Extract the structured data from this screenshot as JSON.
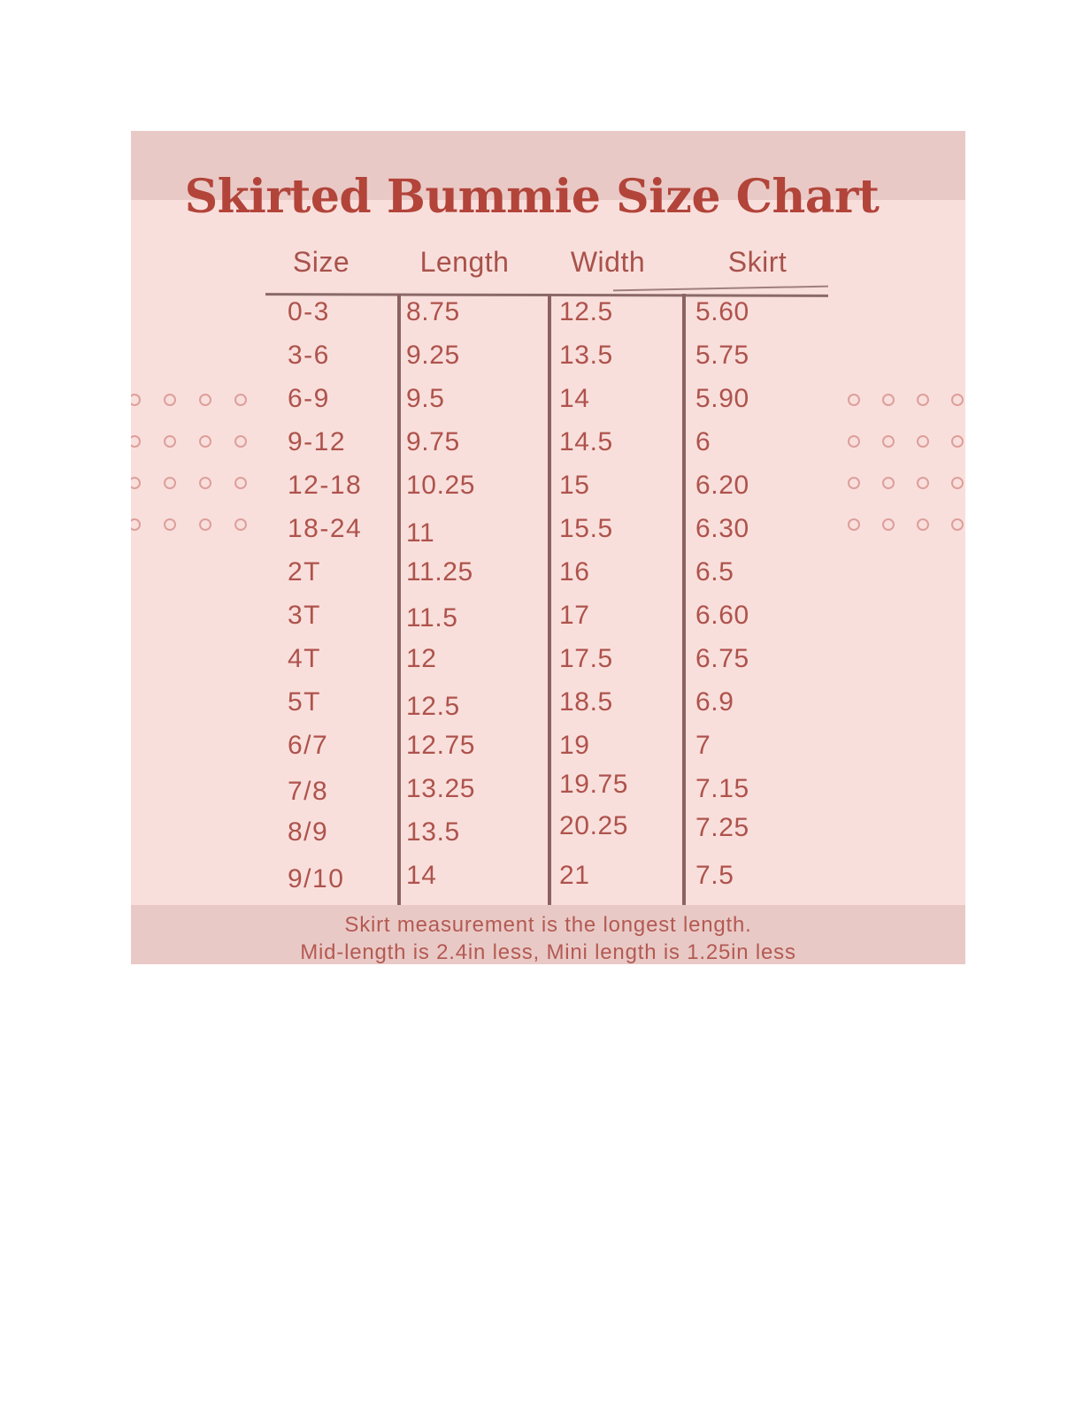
{
  "title": "Skirted Bummie Size Chart",
  "chart_data": {
    "type": "table",
    "title": "Skirted Bummie Size Chart",
    "columns": [
      "Size",
      "Length",
      "Width",
      "Skirt"
    ],
    "rows": [
      [
        "0-3",
        "8.75",
        "12.5",
        "5.60"
      ],
      [
        "3-6",
        "9.25",
        "13.5",
        "5.75"
      ],
      [
        "6-9",
        "9.5",
        "14",
        "5.90"
      ],
      [
        "9-12",
        "9.75",
        "14.5",
        "6"
      ],
      [
        "12-18",
        "10.25",
        "15",
        "6.20"
      ],
      [
        "18-24",
        "11",
        "15.5",
        "6.30"
      ],
      [
        "2T",
        "11.25",
        "16",
        "6.5"
      ],
      [
        "3T",
        "11.5",
        "17",
        "6.60"
      ],
      [
        "4T",
        "12",
        "17.5",
        "6.75"
      ],
      [
        "5T",
        "12.5",
        "18.5",
        "6.9"
      ],
      [
        "6/7",
        "12.75",
        "19",
        "7"
      ],
      [
        "7/8",
        "13.25",
        "19.75",
        "7.15"
      ],
      [
        "8/9",
        "13.5",
        "20.25",
        "7.25"
      ],
      [
        "9/10",
        "14",
        "21",
        "7.5"
      ]
    ],
    "notes": [
      "Skirt measurement is the longest length.",
      "Mid-length is 2.4in less, Mini length is 1.25in less"
    ]
  },
  "footer": {
    "line1": "Skirt measurement is the longest length.",
    "line2": "Mid-length is 2.4in less, Mini length is 1.25in less"
  },
  "colors": {
    "page_background": "#ffffff",
    "card_background": "#f9dfdc",
    "band_background": "#e9c9c6",
    "title_text": "#b2443a",
    "table_text": "#ae534c",
    "line": "#8c6260",
    "dot_outline": "#dd9f9b"
  }
}
